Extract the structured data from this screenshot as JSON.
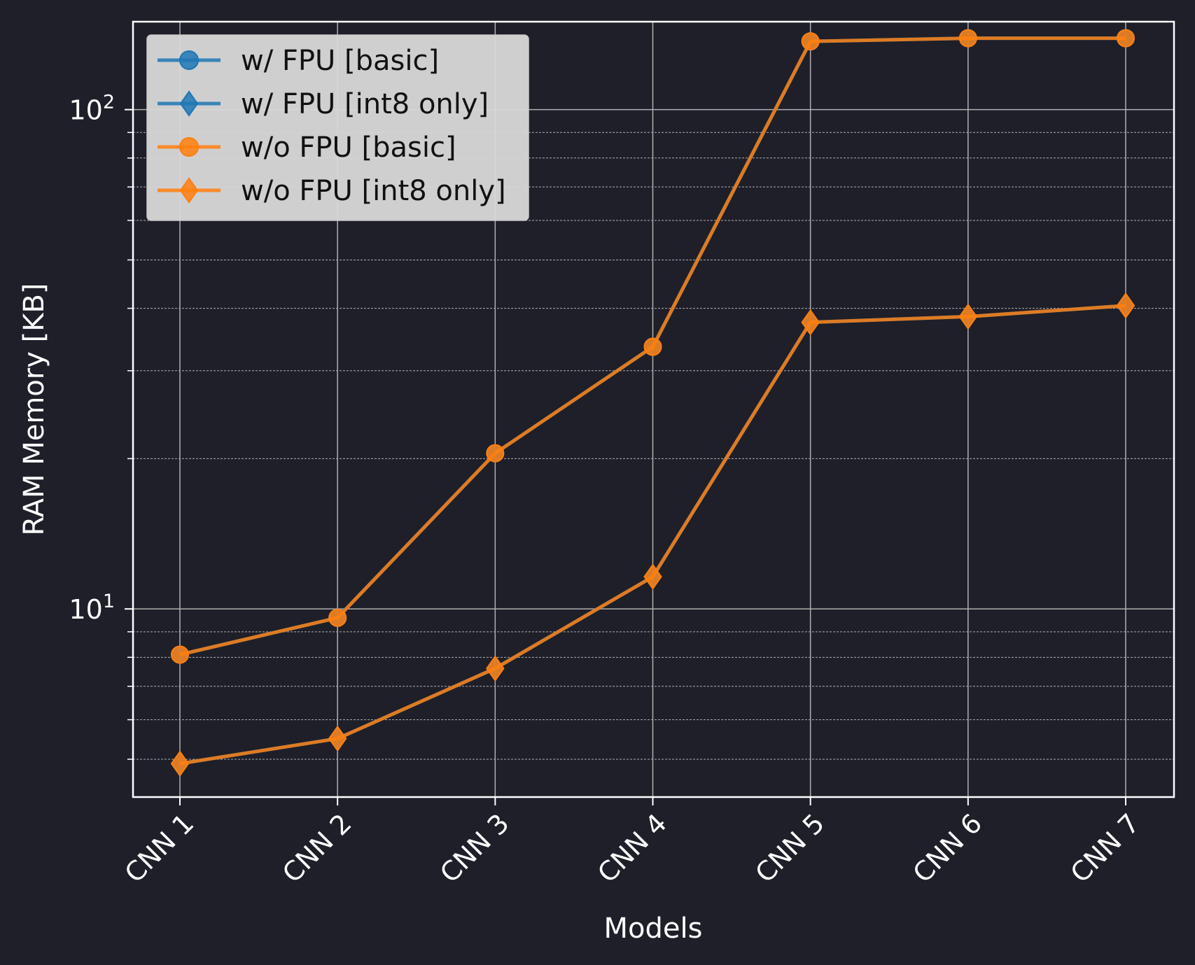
{
  "chart_data": {
    "type": "line",
    "title": "",
    "xlabel": "Models",
    "ylabel": "RAM Memory [KB]",
    "yscale": "log",
    "ylim": [
      4.2,
      150
    ],
    "yticks": [
      {
        "value": 10,
        "base": "10",
        "exp": "1"
      },
      {
        "value": 100,
        "base": "10",
        "exp": "2"
      }
    ],
    "grid": "on (major solid, minor dashed)",
    "legend_position": "top-left",
    "categories": [
      "CNN 1",
      "CNN 2",
      "CNN 3",
      "CNN 4",
      "CNN 5",
      "CNN 6",
      "CNN 7"
    ],
    "series": [
      {
        "name": "w/ FPU [basic]",
        "marker": "circle",
        "color": "#1f77b4",
        "values": [
          8.1,
          9.6,
          20.5,
          33.5,
          137,
          139,
          139
        ]
      },
      {
        "name": "w/ FPU [int8 only]",
        "marker": "diamond",
        "color": "#1f77b4",
        "values": [
          4.9,
          5.5,
          7.6,
          11.6,
          37.5,
          38.5,
          40.5
        ]
      },
      {
        "name": "w/o FPU [basic]",
        "marker": "circle",
        "color": "#ff7f0e",
        "values": [
          8.1,
          9.6,
          20.5,
          33.5,
          137,
          139,
          139
        ]
      },
      {
        "name": "w/o FPU [int8 only]",
        "marker": "diamond",
        "color": "#ff7f0e",
        "values": [
          4.9,
          5.5,
          7.6,
          11.6,
          37.5,
          38.5,
          40.5
        ]
      }
    ]
  }
}
